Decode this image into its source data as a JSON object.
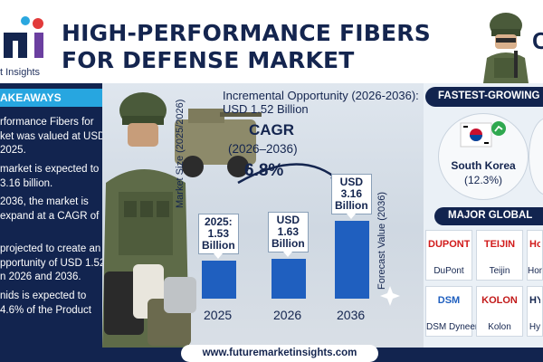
{
  "header": {
    "title_line1": "HIGH-PERFORMANCE FIBERS",
    "title_line2": "FOR DEFENSE MARKET",
    "logo_sub": "t Insights",
    "cut_letter": "C"
  },
  "key_takeaways": {
    "heading": "AKEAWAYS",
    "items": [
      "rformance Fibers for\nket was valued at USD\n2025.",
      "market is expected to\n3.16 billion.",
      "2036, the market is\nexpand at a CAGR of",
      "projected to create an\npportunity of USD 1.52\nn 2026 and 2036.",
      "nids is expected to\n4.6% of the Product"
    ]
  },
  "chart": {
    "incremental": "Incremental Opportunity (2026-2036):\nUSD 1.52 Billion",
    "cagr_title": "CAGR",
    "cagr_period": "(2026–2036)",
    "cagr_value": "6.8%",
    "y_label_left": "Market Size (2025/2026)",
    "y_label_right": "Forecast Value (2036)",
    "bar_color": "#1f5fbf"
  },
  "chart_data": {
    "type": "bar",
    "categories": [
      "2025",
      "2026",
      "2036"
    ],
    "values": [
      1.53,
      1.63,
      3.16
    ],
    "value_labels": [
      "2025:\n1.53\nBillion",
      "USD\n1.63\nBillion",
      "USD\n3.16\nBillion"
    ],
    "ylabel": "Market Size (2025/2026)",
    "ylabel_right": "Forecast Value (2036)",
    "unit": "USD Billion"
  },
  "fastest": {
    "heading": "FASTEST-GROWING",
    "country": "South Korea",
    "pct": "(12.3%)"
  },
  "major": {
    "heading": "MAJOR GLOBAL",
    "companies": [
      {
        "logo": "DUPONT",
        "name": "DuPont",
        "color": "#d11a1a"
      },
      {
        "logo": "TEIJIN",
        "name": "Teijin",
        "color": "#d11a1a"
      },
      {
        "logo": "Hon",
        "name": "Hon",
        "color": "#d11a1a"
      },
      {
        "logo": "DSM",
        "name": "DSM Dyneema",
        "color": "#1f5fbf"
      },
      {
        "logo": "KOLON",
        "name": "Kolon",
        "color": "#c21a1a"
      },
      {
        "logo": "HYC",
        "name": "Hy",
        "color": "#14254f"
      }
    ]
  },
  "footer": {
    "url": "www.futuremarketinsights.com"
  }
}
